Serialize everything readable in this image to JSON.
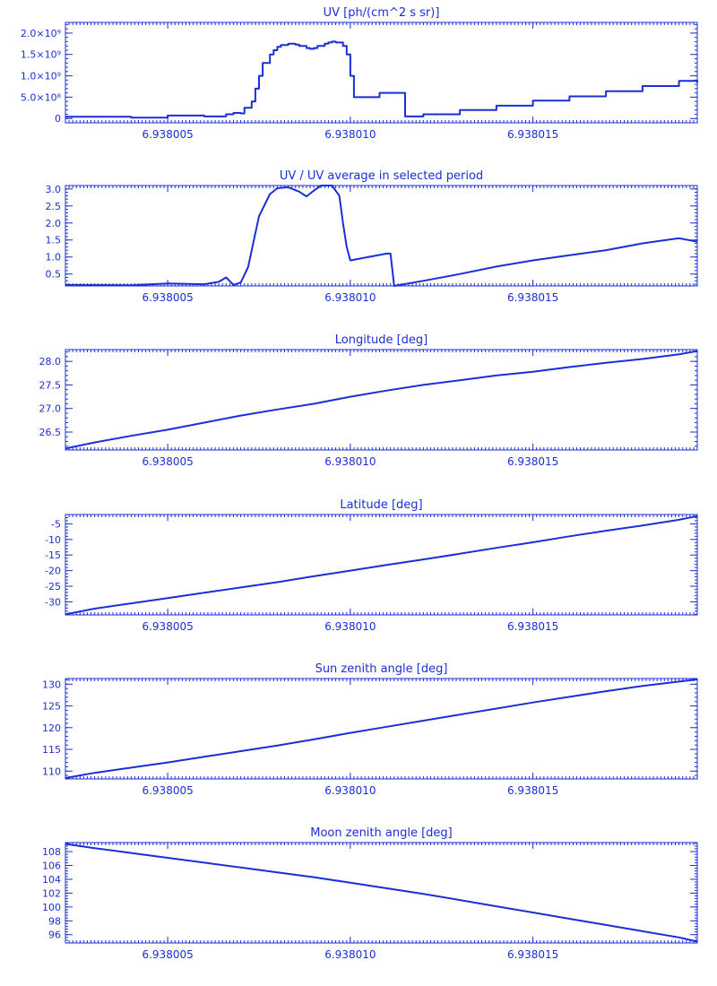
{
  "theme": {
    "color": "#1a2fd6",
    "background": "#ffffff"
  },
  "chart_data": [
    {
      "type": "line",
      "title": "UV [ph/(cm^2 s sr)]",
      "xlim": [
        6.9380022,
        6.9380195
      ],
      "ylim": [
        -100000000.0,
        2250000000.0
      ],
      "xticks": [
        6.938005,
        6.93801,
        6.938015
      ],
      "xtick_labels": [
        "6.938005",
        "6.938010",
        "6.938015"
      ],
      "yticks": [
        0,
        500000000.0,
        1000000000.0,
        1500000000.0,
        2000000000.0
      ],
      "ytick_labels": [
        "0",
        "5.0×10⁸",
        "1.0×10⁹",
        "1.5×10⁹",
        "2.0×10⁹"
      ],
      "step": true,
      "x": [
        6.9380022,
        6.938004,
        6.938005,
        6.938006,
        6.9380066,
        6.9380068,
        6.938007,
        6.9380071,
        6.9380073,
        6.9380074,
        6.9380075,
        6.9380076,
        6.9380078,
        6.9380079,
        6.938008,
        6.9380081,
        6.9380083,
        6.9380084,
        6.9380085,
        6.9380086,
        6.9380088,
        6.9380089,
        6.938009,
        6.9380091,
        6.9380093,
        6.9380094,
        6.9380095,
        6.9380096,
        6.9380098,
        6.9380099,
        6.93801,
        6.9380101,
        6.9380102,
        6.9380105,
        6.9380108,
        6.938011,
        6.9380112,
        6.9380115,
        6.938012,
        6.938013,
        6.938014,
        6.938015,
        6.938016,
        6.938017,
        6.938018,
        6.938019,
        6.9380195
      ],
      "y": [
        40000000.0,
        20000000.0,
        70000000.0,
        50000000.0,
        100000000.0,
        130000000.0,
        120000000.0,
        250000000.0,
        400000000.0,
        700000000.0,
        1000000000.0,
        1300000000.0,
        1500000000.0,
        1600000000.0,
        1680000000.0,
        1720000000.0,
        1750000000.0,
        1750000000.0,
        1730000000.0,
        1700000000.0,
        1650000000.0,
        1630000000.0,
        1650000000.0,
        1700000000.0,
        1750000000.0,
        1780000000.0,
        1800000000.0,
        1780000000.0,
        1700000000.0,
        1500000000.0,
        1000000000.0,
        500000000.0,
        500000000.0,
        500000000.0,
        600000000.0,
        600000000.0,
        600000000.0,
        50000000.0,
        100000000.0,
        200000000.0,
        300000000.0,
        420000000.0,
        520000000.0,
        640000000.0,
        760000000.0,
        880000000.0,
        840000000.0
      ]
    },
    {
      "type": "line",
      "title": "UV / UV average in selected period",
      "xlim": [
        6.9380022,
        6.9380195
      ],
      "ylim": [
        0.15,
        3.1
      ],
      "xticks": [
        6.938005,
        6.93801,
        6.938015
      ],
      "xtick_labels": [
        "6.938005",
        "6.938010",
        "6.938015"
      ],
      "yticks": [
        0.5,
        1.0,
        1.5,
        2.0,
        2.5,
        3.0
      ],
      "ytick_labels": [
        "0.5",
        "1.0",
        "1.5",
        "2.0",
        "2.5",
        "3.0"
      ],
      "x": [
        6.9380022,
        6.938004,
        6.938005,
        6.938006,
        6.9380064,
        6.9380066,
        6.9380068,
        6.938007,
        6.9380072,
        6.9380075,
        6.9380078,
        6.938008,
        6.9380083,
        6.9380086,
        6.9380088,
        6.938009,
        6.9380092,
        6.9380095,
        6.9380097,
        6.9380098,
        6.9380099,
        6.93801,
        6.938011,
        6.9380111,
        6.9380112,
        6.938012,
        6.938013,
        6.938014,
        6.938015,
        6.938016,
        6.938017,
        6.938018,
        6.938019,
        6.9380195
      ],
      "y": [
        0.18,
        0.17,
        0.22,
        0.2,
        0.27,
        0.4,
        0.18,
        0.25,
        0.7,
        2.2,
        2.85,
        3.02,
        3.05,
        2.92,
        2.78,
        2.95,
        3.1,
        3.1,
        2.8,
        2.0,
        1.3,
        0.9,
        1.1,
        1.1,
        0.15,
        0.3,
        0.5,
        0.72,
        0.9,
        1.05,
        1.2,
        1.4,
        1.55,
        1.45
      ]
    },
    {
      "type": "line",
      "title": "Longitude [deg]",
      "xlim": [
        6.9380022,
        6.9380195
      ],
      "ylim": [
        26.12,
        28.25
      ],
      "xticks": [
        6.938005,
        6.93801,
        6.938015
      ],
      "xtick_labels": [
        "6.938005",
        "6.938010",
        "6.938015"
      ],
      "yticks": [
        26.5,
        27.0,
        27.5,
        28.0
      ],
      "ytick_labels": [
        "26.5",
        "27.0",
        "27.5",
        "28.0"
      ],
      "x": [
        6.9380022,
        6.938003,
        6.938004,
        6.938005,
        6.938006,
        6.938007,
        6.938008,
        6.938009,
        6.93801,
        6.938011,
        6.938012,
        6.938013,
        6.938014,
        6.938015,
        6.938016,
        6.938017,
        6.938018,
        6.938019,
        6.9380195
      ],
      "y": [
        26.15,
        26.28,
        26.42,
        26.55,
        26.7,
        26.85,
        26.98,
        27.1,
        27.25,
        27.38,
        27.5,
        27.6,
        27.7,
        27.78,
        27.88,
        27.97,
        28.05,
        28.15,
        28.22
      ]
    },
    {
      "type": "line",
      "title": "Latitude [deg]",
      "xlim": [
        6.9380022,
        6.9380195
      ],
      "ylim": [
        -34.2,
        -2.0
      ],
      "xticks": [
        6.938005,
        6.93801,
        6.938015
      ],
      "xtick_labels": [
        "6.938005",
        "6.938010",
        "6.938015"
      ],
      "yticks": [
        -30,
        -25,
        -20,
        -15,
        -10,
        -5
      ],
      "ytick_labels": [
        "-30",
        "-25",
        "-20",
        "-15",
        "-10",
        "-5"
      ],
      "x": [
        6.9380022,
        6.938003,
        6.938004,
        6.938005,
        6.938006,
        6.938007,
        6.938008,
        6.938009,
        6.93801,
        6.938011,
        6.938012,
        6.938013,
        6.938014,
        6.938015,
        6.938016,
        6.938017,
        6.938018,
        6.938019,
        6.9380195
      ],
      "y": [
        -34,
        -32.2,
        -30.5,
        -28.8,
        -27.1,
        -25.4,
        -23.7,
        -21.8,
        -20.0,
        -18.2,
        -16.4,
        -14.6,
        -12.7,
        -10.9,
        -9.0,
        -7.2,
        -5.5,
        -3.7,
        -2.5
      ]
    },
    {
      "type": "line",
      "title": "Sun zenith angle [deg]",
      "xlim": [
        6.9380022,
        6.9380195
      ],
      "ylim": [
        108.2,
        131.3
      ],
      "xticks": [
        6.938005,
        6.93801,
        6.938015
      ],
      "xtick_labels": [
        "6.938005",
        "6.938010",
        "6.938015"
      ],
      "yticks": [
        110,
        115,
        120,
        125,
        130
      ],
      "ytick_labels": [
        "110",
        "115",
        "120",
        "125",
        "130"
      ],
      "x": [
        6.9380022,
        6.938003,
        6.938004,
        6.938005,
        6.938006,
        6.938007,
        6.938008,
        6.938009,
        6.93801,
        6.938011,
        6.938012,
        6.938013,
        6.938014,
        6.938015,
        6.938016,
        6.938017,
        6.938018,
        6.938019,
        6.9380195
      ],
      "y": [
        108.4,
        109.6,
        110.8,
        112.0,
        113.3,
        114.6,
        115.9,
        117.3,
        118.8,
        120.2,
        121.6,
        123.0,
        124.4,
        125.8,
        127.1,
        128.4,
        129.6,
        130.6,
        131.1
      ]
    },
    {
      "type": "line",
      "title": "Moon zenith angle [deg]",
      "xlim": [
        6.9380022,
        6.9380195
      ],
      "ylim": [
        94.8,
        109.3
      ],
      "xticks": [
        6.938005,
        6.93801,
        6.938015
      ],
      "xtick_labels": [
        "6.938005",
        "6.938010",
        "6.938015"
      ],
      "yticks": [
        96,
        98,
        100,
        102,
        104,
        106,
        108
      ],
      "ytick_labels": [
        "96",
        "98",
        "100",
        "102",
        "104",
        "106",
        "108"
      ],
      "x": [
        6.9380022,
        6.938003,
        6.938004,
        6.938005,
        6.938006,
        6.938007,
        6.938008,
        6.938009,
        6.93801,
        6.938011,
        6.938012,
        6.938013,
        6.938014,
        6.938015,
        6.938016,
        6.938017,
        6.938018,
        6.938019,
        6.9380195
      ],
      "y": [
        109.1,
        108.5,
        107.8,
        107.1,
        106.4,
        105.7,
        105.0,
        104.3,
        103.5,
        102.7,
        101.9,
        101.0,
        100.1,
        99.2,
        98.3,
        97.4,
        96.5,
        95.6,
        95.0
      ]
    }
  ]
}
